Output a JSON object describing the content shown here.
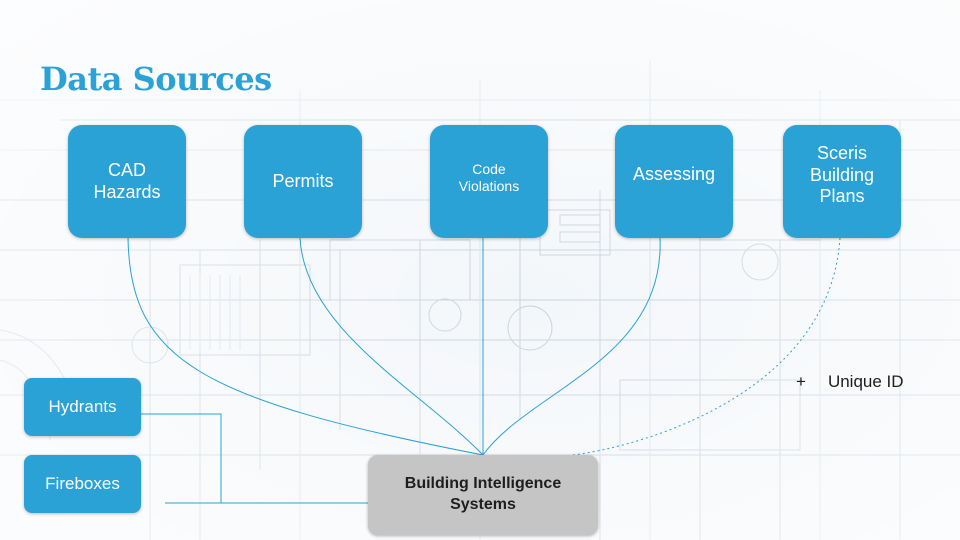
{
  "title": "Data Sources",
  "sources": [
    {
      "lines": [
        "CAD",
        "Hazards"
      ]
    },
    {
      "lines": [
        "Permits"
      ]
    },
    {
      "lines": [
        "Code",
        "Violations"
      ]
    },
    {
      "lines": [
        "Assessing"
      ]
    },
    {
      "lines": [
        "Sceris",
        "Building",
        "Plans"
      ]
    }
  ],
  "side_sources": [
    {
      "label": "Hydrants"
    },
    {
      "label": "Fireboxes"
    }
  ],
  "target": {
    "lines": [
      "Building Intelligence",
      "Systems"
    ]
  },
  "unique_id": {
    "symbol": "+",
    "label": "Unique ID"
  },
  "colors": {
    "accent": "#2aa2d5",
    "target_fill": "#c5c5c5",
    "text_dark": "#1e1e1e"
  }
}
